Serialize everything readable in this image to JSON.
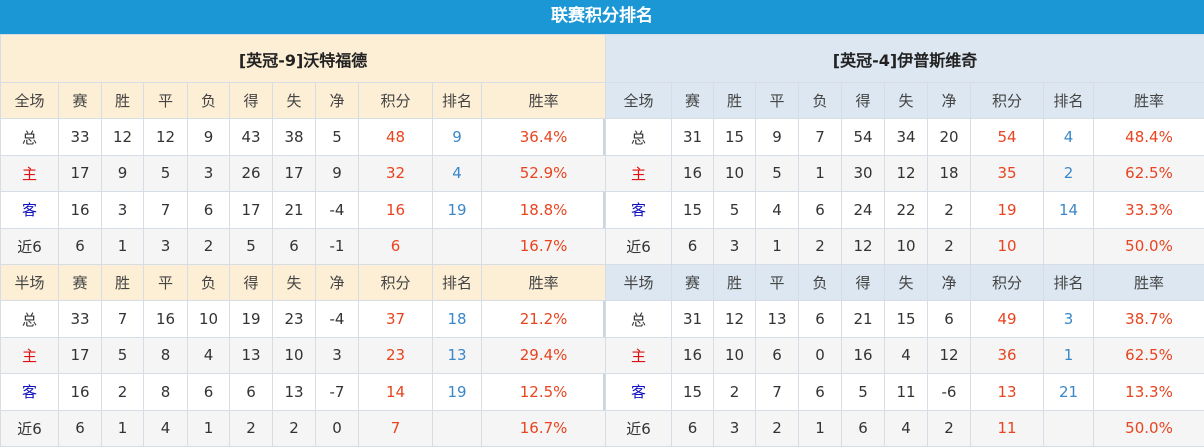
{
  "title": "联赛积分排名",
  "colors": {
    "title_bg": "#1b97d5",
    "home_header_bg": "#fcefd6",
    "away_header_bg": "#dce7f1",
    "points": "#e8441f",
    "rank": "#3a87c9"
  },
  "columns": [
    "赛",
    "胜",
    "平",
    "负",
    "得",
    "失",
    "净",
    "积分",
    "排名",
    "胜率"
  ],
  "teams": [
    {
      "name": "[英冠-9]沃特福德",
      "full": {
        "label": "全场",
        "rows": [
          [
            "总",
            "33",
            "12",
            "12",
            "9",
            "43",
            "38",
            "5",
            "48",
            "9",
            "36.4%"
          ],
          [
            "主",
            "17",
            "9",
            "5",
            "3",
            "26",
            "17",
            "9",
            "32",
            "4",
            "52.9%"
          ],
          [
            "客",
            "16",
            "3",
            "7",
            "6",
            "17",
            "21",
            "-4",
            "16",
            "19",
            "18.8%"
          ],
          [
            "近6",
            "6",
            "1",
            "3",
            "2",
            "5",
            "6",
            "-1",
            "6",
            "",
            "16.7%"
          ]
        ]
      },
      "half": {
        "label": "半场",
        "rows": [
          [
            "总",
            "33",
            "7",
            "16",
            "10",
            "19",
            "23",
            "-4",
            "37",
            "18",
            "21.2%"
          ],
          [
            "主",
            "17",
            "5",
            "8",
            "4",
            "13",
            "10",
            "3",
            "23",
            "13",
            "29.4%"
          ],
          [
            "客",
            "16",
            "2",
            "8",
            "6",
            "6",
            "13",
            "-7",
            "14",
            "19",
            "12.5%"
          ],
          [
            "近6",
            "6",
            "1",
            "4",
            "1",
            "2",
            "2",
            "0",
            "7",
            "",
            "16.7%"
          ]
        ]
      }
    },
    {
      "name": "[英冠-4]伊普斯维奇",
      "full": {
        "label": "全场",
        "rows": [
          [
            "总",
            "31",
            "15",
            "9",
            "7",
            "54",
            "34",
            "20",
            "54",
            "4",
            "48.4%"
          ],
          [
            "主",
            "16",
            "10",
            "5",
            "1",
            "30",
            "12",
            "18",
            "35",
            "2",
            "62.5%"
          ],
          [
            "客",
            "15",
            "5",
            "4",
            "6",
            "24",
            "22",
            "2",
            "19",
            "14",
            "33.3%"
          ],
          [
            "近6",
            "6",
            "3",
            "1",
            "2",
            "12",
            "10",
            "2",
            "10",
            "",
            "50.0%"
          ]
        ]
      },
      "half": {
        "label": "半场",
        "rows": [
          [
            "总",
            "31",
            "12",
            "13",
            "6",
            "21",
            "15",
            "6",
            "49",
            "3",
            "38.7%"
          ],
          [
            "主",
            "16",
            "10",
            "6",
            "0",
            "16",
            "4",
            "12",
            "36",
            "1",
            "62.5%"
          ],
          [
            "客",
            "15",
            "2",
            "7",
            "6",
            "5",
            "11",
            "-6",
            "13",
            "21",
            "13.3%"
          ],
          [
            "近6",
            "6",
            "3",
            "2",
            "1",
            "6",
            "4",
            "2",
            "11",
            "",
            "50.0%"
          ]
        ]
      }
    }
  ]
}
